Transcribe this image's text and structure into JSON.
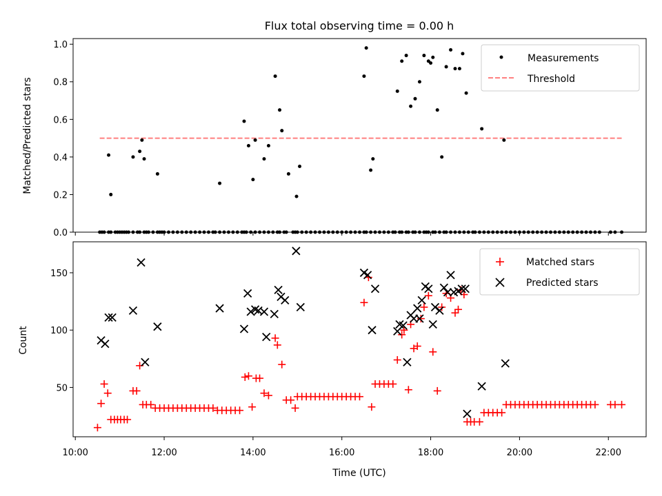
{
  "chart_data": [
    {
      "type": "scatter",
      "title": "Flux total observing time = 0.00 h",
      "xlabel": "",
      "ylabel": "Matched/Predicted stars",
      "xlim": [
        9.95,
        22.85
      ],
      "ylim": [
        0,
        1.03
      ],
      "yticks": [
        0.0,
        0.2,
        0.4,
        0.6,
        0.8,
        1.0
      ],
      "ytick_labels": [
        "0.0",
        "0.2",
        "0.4",
        "0.6",
        "0.8",
        "1.0"
      ],
      "grid": false,
      "legend_position": "top-right",
      "colors": {
        "measurements": "#000000",
        "threshold": "#ff7f7f"
      },
      "series": [
        {
          "name": "Measurements",
          "marker": "dot",
          "x": [
            10.55,
            10.6,
            10.65,
            10.75,
            10.8,
            10.9,
            10.95,
            11.0,
            11.05,
            11.1,
            11.15,
            11.2,
            11.3,
            11.4,
            11.45,
            11.55,
            11.6,
            11.65,
            11.75,
            11.85,
            11.9,
            11.95,
            12.0,
            12.1,
            12.2,
            12.3,
            12.4,
            12.5,
            12.6,
            12.7,
            12.8,
            12.9,
            13.0,
            13.1,
            13.15,
            13.25,
            13.35,
            13.45,
            13.55,
            13.65,
            13.75,
            13.8,
            13.85,
            13.95,
            14.05,
            14.15,
            14.25,
            14.35,
            14.45,
            14.55,
            14.6,
            14.7,
            14.75,
            14.9,
            14.95,
            15.0,
            15.1,
            15.2,
            15.3,
            15.4,
            15.5,
            15.6,
            15.7,
            15.8,
            15.9,
            16.0,
            16.1,
            16.2,
            16.3,
            16.4,
            16.5,
            16.55,
            16.65,
            16.75,
            16.85,
            16.95,
            17.05,
            17.15,
            17.2,
            17.3,
            17.35,
            17.45,
            17.5,
            17.6,
            17.65,
            17.75,
            17.85,
            17.9,
            17.95,
            18.05,
            18.1,
            18.2,
            18.3,
            18.35,
            18.45,
            18.55,
            18.65,
            18.75,
            18.85,
            18.95,
            19.0,
            19.1,
            19.2,
            19.3,
            19.4,
            19.5,
            19.6,
            19.7,
            19.8,
            19.9,
            20.0,
            20.1,
            20.2,
            20.3,
            20.4,
            20.5,
            20.6,
            20.7,
            20.8,
            20.9,
            21.0,
            21.1,
            21.2,
            21.3,
            21.4,
            21.5,
            21.6,
            21.7,
            21.8,
            22.05,
            22.15,
            22.3,
            10.75,
            10.8,
            11.3,
            11.45,
            11.5,
            11.55,
            11.85,
            13.25,
            13.8,
            13.9,
            14.0,
            14.05,
            14.25,
            14.35,
            14.5,
            14.6,
            14.65,
            14.8,
            14.98,
            15.05,
            16.5,
            16.55,
            16.65,
            16.7,
            17.25,
            17.35,
            17.45,
            17.55,
            17.65,
            17.75,
            17.85,
            17.95,
            18.0,
            18.05,
            18.15,
            18.25,
            18.35,
            18.45,
            18.55,
            18.65,
            18.72,
            18.8,
            19.15,
            19.65
          ],
          "y": [
            0,
            0,
            0,
            0,
            0,
            0,
            0,
            0,
            0,
            0,
            0,
            0,
            0,
            0,
            0,
            0,
            0,
            0,
            0,
            0,
            0,
            0,
            0,
            0,
            0,
            0,
            0,
            0,
            0,
            0,
            0,
            0,
            0,
            0,
            0,
            0,
            0,
            0,
            0,
            0,
            0,
            0,
            0,
            0,
            0,
            0,
            0,
            0,
            0,
            0,
            0,
            0,
            0,
            0,
            0,
            0,
            0,
            0,
            0,
            0,
            0,
            0,
            0,
            0,
            0,
            0,
            0,
            0,
            0,
            0,
            0,
            0,
            0,
            0,
            0,
            0,
            0,
            0,
            0,
            0,
            0,
            0,
            0,
            0,
            0,
            0,
            0,
            0,
            0,
            0,
            0,
            0,
            0,
            0,
            0,
            0,
            0,
            0,
            0,
            0,
            0,
            0,
            0,
            0,
            0,
            0,
            0,
            0,
            0,
            0,
            0,
            0,
            0,
            0,
            0,
            0,
            0,
            0,
            0,
            0,
            0,
            0,
            0,
            0,
            0,
            0,
            0,
            0,
            0,
            0,
            0,
            0,
            0.41,
            0.2,
            0.4,
            0.43,
            0.49,
            0.39,
            0.31,
            0.26,
            0.59,
            0.46,
            0.28,
            0.49,
            0.39,
            0.46,
            0.83,
            0.65,
            0.54,
            0.31,
            0.19,
            0.35,
            0.83,
            0.98,
            0.33,
            0.39,
            0.75,
            0.91,
            0.94,
            0.67,
            0.71,
            0.8,
            0.94,
            0.91,
            0.9,
            0.93,
            0.65,
            0.4,
            0.88,
            0.97,
            0.87,
            0.87,
            0.95,
            0.74,
            0.55,
            0.49
          ]
        },
        {
          "name": "Threshold",
          "marker": "dashed-line",
          "x": [
            10.55,
            22.3
          ],
          "y": [
            0.5,
            0.5
          ]
        }
      ]
    },
    {
      "type": "scatter",
      "title": "",
      "xlabel": "Time (UTC)",
      "ylabel": "Count",
      "xlim": [
        9.95,
        22.85
      ],
      "ylim": [
        7,
        177
      ],
      "xticks": [
        10,
        12,
        14,
        16,
        18,
        20,
        22
      ],
      "xtick_labels": [
        "10:00",
        "12:00",
        "14:00",
        "16:00",
        "18:00",
        "20:00",
        "22:00"
      ],
      "yticks": [
        50,
        100,
        150
      ],
      "ytick_labels": [
        "50",
        "100",
        "150"
      ],
      "grid": false,
      "legend_position": "top-right",
      "colors": {
        "matched": "#ff0000",
        "predicted": "#000000"
      },
      "series": [
        {
          "name": "Matched stars",
          "marker": "plus",
          "x": [
            10.5,
            10.58,
            10.65,
            10.73,
            10.8,
            10.88,
            10.95,
            11.02,
            11.1,
            11.17,
            11.3,
            11.38,
            11.45,
            11.52,
            11.6,
            11.7,
            11.8,
            11.9,
            12.0,
            12.1,
            12.2,
            12.3,
            12.4,
            12.5,
            12.6,
            12.7,
            12.8,
            12.9,
            13.0,
            13.1,
            13.2,
            13.3,
            13.4,
            13.5,
            13.6,
            13.7,
            13.82,
            13.9,
            13.98,
            14.07,
            14.15,
            14.25,
            14.35,
            14.5,
            14.55,
            14.65,
            14.75,
            14.85,
            14.95,
            15.0,
            15.1,
            15.2,
            15.3,
            15.4,
            15.5,
            15.6,
            15.7,
            15.8,
            15.9,
            16.0,
            16.1,
            16.2,
            16.3,
            16.4,
            16.5,
            16.6,
            16.67,
            16.75,
            16.85,
            16.95,
            17.05,
            17.15,
            17.25,
            17.35,
            17.4,
            17.5,
            17.55,
            17.62,
            17.7,
            17.78,
            17.85,
            17.95,
            18.05,
            18.15,
            18.25,
            18.35,
            18.45,
            18.55,
            18.62,
            18.68,
            18.75,
            18.82,
            18.9,
            18.98,
            19.1,
            19.2,
            19.3,
            19.4,
            19.5,
            19.6,
            19.7,
            19.8,
            19.9,
            20.0,
            20.1,
            20.2,
            20.3,
            20.4,
            20.5,
            20.6,
            20.7,
            20.8,
            20.9,
            21.0,
            21.1,
            21.2,
            21.3,
            21.4,
            21.5,
            21.6,
            21.7,
            22.05,
            22.15,
            22.3
          ],
          "y": [
            15,
            36,
            53,
            45,
            22,
            22,
            22,
            22,
            22,
            22,
            47,
            47,
            69,
            35,
            35,
            35,
            32,
            32,
            32,
            32,
            32,
            32,
            32,
            32,
            32,
            32,
            32,
            32,
            32,
            32,
            30,
            30,
            30,
            30,
            30,
            30,
            59,
            60,
            33,
            58,
            58,
            45,
            43,
            93,
            87,
            70,
            39,
            39,
            32,
            42,
            42,
            42,
            42,
            42,
            42,
            42,
            42,
            42,
            42,
            42,
            42,
            42,
            42,
            42,
            124,
            146,
            33,
            53,
            53,
            53,
            53,
            53,
            74,
            96,
            100,
            48,
            105,
            84,
            86,
            110,
            120,
            130,
            81,
            47,
            120,
            132,
            128,
            115,
            118,
            135,
            131,
            20,
            20,
            20,
            20,
            28,
            28,
            28,
            28,
            28,
            35,
            35,
            35,
            35,
            35,
            35,
            35,
            35,
            35,
            35,
            35,
            35,
            35,
            35,
            35,
            35,
            35,
            35,
            35,
            35,
            35,
            35,
            35,
            35
          ]
        },
        {
          "name": "Predicted stars",
          "marker": "x",
          "x": [
            10.58,
            10.67,
            10.75,
            10.83,
            11.3,
            11.48,
            11.57,
            11.85,
            13.25,
            13.8,
            13.88,
            13.95,
            14.05,
            14.12,
            14.25,
            14.3,
            14.48,
            14.57,
            14.63,
            14.72,
            14.97,
            15.07,
            16.5,
            16.58,
            16.68,
            16.75,
            17.25,
            17.3,
            17.38,
            17.47,
            17.55,
            17.62,
            17.7,
            17.75,
            17.8,
            17.88,
            17.95,
            18.05,
            18.1,
            18.2,
            18.3,
            18.38,
            18.45,
            18.52,
            18.62,
            18.7,
            18.78,
            18.82,
            19.15,
            19.68
          ],
          "y": [
            91,
            88,
            111,
            111,
            117,
            159,
            72,
            103,
            119,
            101,
            132,
            116,
            118,
            117,
            116,
            94,
            114,
            135,
            129,
            126,
            169,
            120,
            150,
            148,
            100,
            136,
            99,
            105,
            104,
            72,
            113,
            110,
            119,
            110,
            126,
            138,
            136,
            105,
            120,
            117,
            137,
            133,
            148,
            133,
            134,
            136,
            136,
            27,
            51,
            71
          ]
        }
      ]
    }
  ]
}
